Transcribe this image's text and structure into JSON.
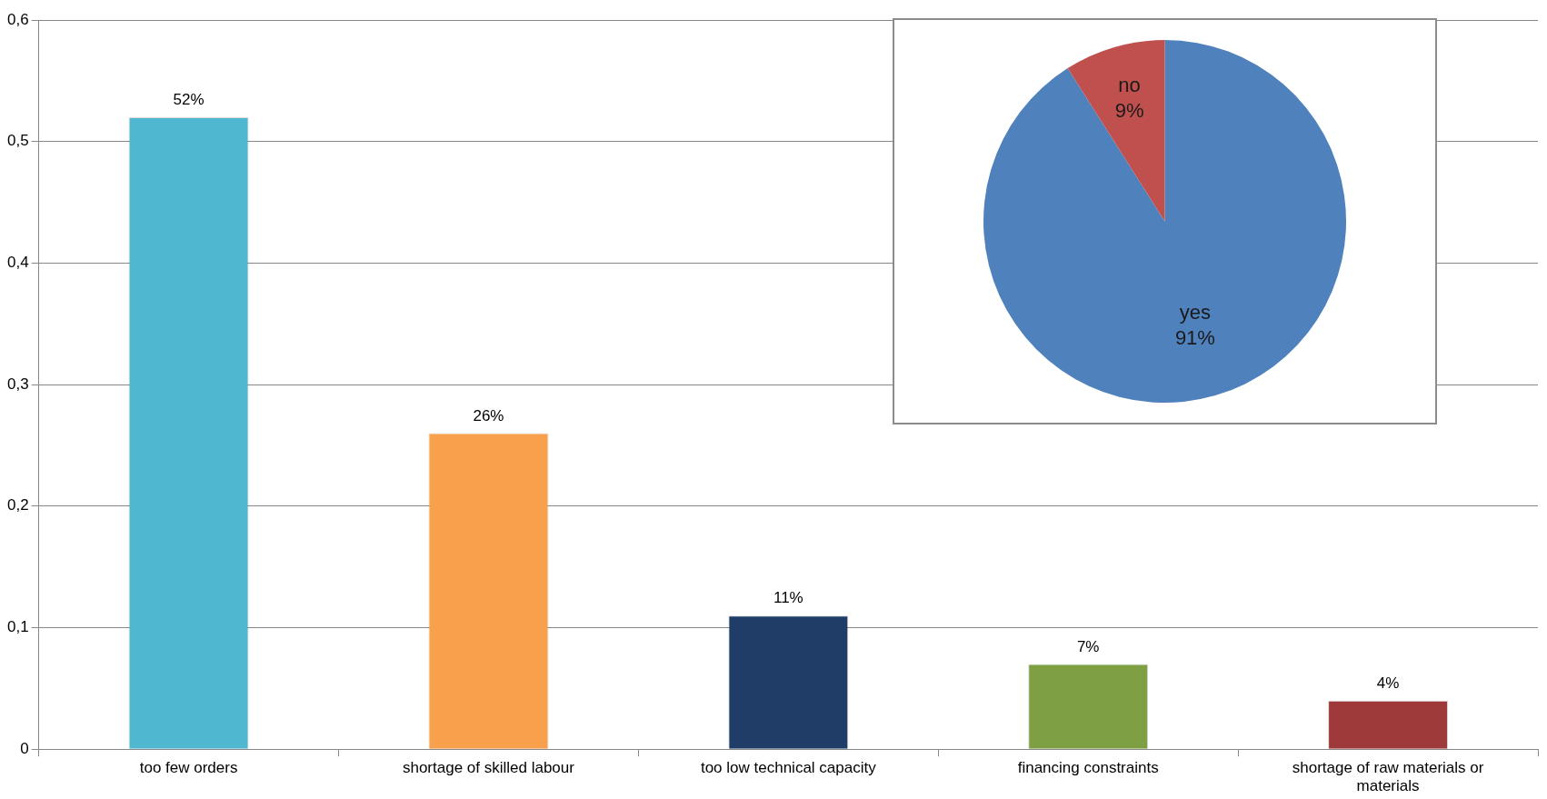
{
  "chart_data": [
    {
      "type": "bar",
      "categories": [
        "too few orders",
        "shortage of skilled labour",
        "too low technical capacity",
        "financing constraints",
        "shortage of raw materials or materials"
      ],
      "values": [
        0.52,
        0.26,
        0.11,
        0.07,
        0.04
      ],
      "colors": [
        "#4fb8d0",
        "#f9a04c",
        "#1f3d66",
        "#7f9f43",
        "#9e3b3a"
      ],
      "value_labels": [
        "52%",
        "26%",
        "11%",
        "7%",
        "4%"
      ],
      "ylim": [
        0,
        0.6
      ],
      "yticks": [
        {
          "value": 0,
          "label": "0"
        },
        {
          "value": 0.1,
          "label": "0,1"
        },
        {
          "value": 0.2,
          "label": "0,2"
        },
        {
          "value": 0.3,
          "label": "0,3"
        },
        {
          "value": 0.4,
          "label": "0,4"
        },
        {
          "value": 0.5,
          "label": "0,5"
        },
        {
          "value": 0.6,
          "label": "0,6"
        }
      ],
      "grid": "y",
      "legend": false
    },
    {
      "type": "pie",
      "categories": [
        "yes",
        "no"
      ],
      "values": [
        91,
        9
      ],
      "colors": [
        "#4f81bd",
        "#c0504d"
      ],
      "value_labels": [
        "91%",
        "9%"
      ],
      "legend": false
    }
  ]
}
